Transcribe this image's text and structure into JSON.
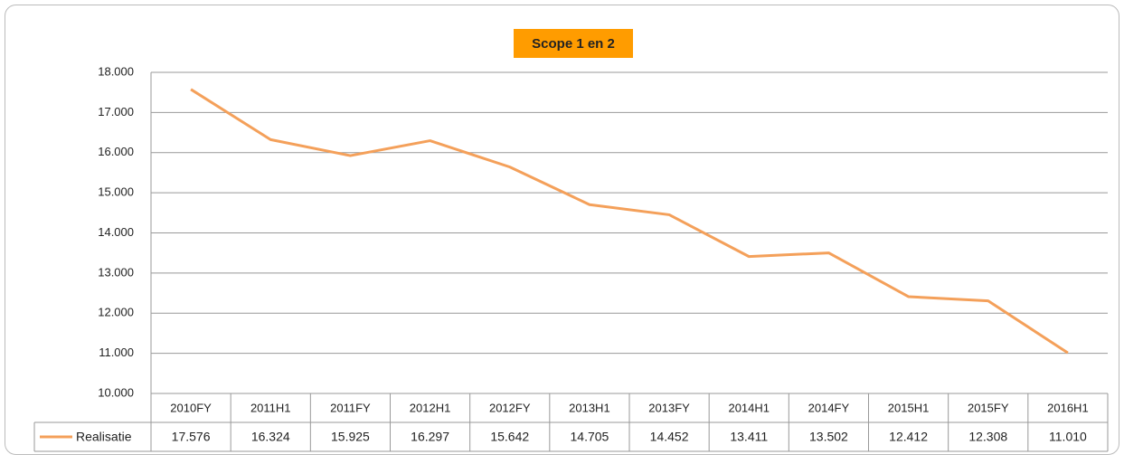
{
  "chart_data": {
    "type": "line",
    "title": "Scope 1 en 2",
    "categories": [
      "2010FY",
      "2011H1",
      "2011FY",
      "2012H1",
      "2012FY",
      "2013H1",
      "2013FY",
      "2014H1",
      "2014FY",
      "2015H1",
      "2015FY",
      "2016H1"
    ],
    "series": [
      {
        "name": "Realisatie",
        "color": "#f4a05a",
        "values": [
          17576,
          16324,
          15925,
          16297,
          15642,
          14705,
          14452,
          13411,
          13502,
          12412,
          12308,
          11010
        ],
        "value_labels": [
          "17.576",
          "16.324",
          "15.925",
          "16.297",
          "15.642",
          "14.705",
          "14.452",
          "13.411",
          "13.502",
          "12.412",
          "12.308",
          "11.010"
        ]
      }
    ],
    "ylim": [
      10000,
      18000
    ],
    "yticks": [
      {
        "value": 10000,
        "label": "10.000"
      },
      {
        "value": 11000,
        "label": "11.000"
      },
      {
        "value": 12000,
        "label": "12.000"
      },
      {
        "value": 13000,
        "label": "13.000"
      },
      {
        "value": 14000,
        "label": "14.000"
      },
      {
        "value": 15000,
        "label": "15.000"
      },
      {
        "value": 16000,
        "label": "16.000"
      },
      {
        "value": 17000,
        "label": "17.000"
      },
      {
        "value": 18000,
        "label": "18.000"
      }
    ],
    "grid": true
  }
}
